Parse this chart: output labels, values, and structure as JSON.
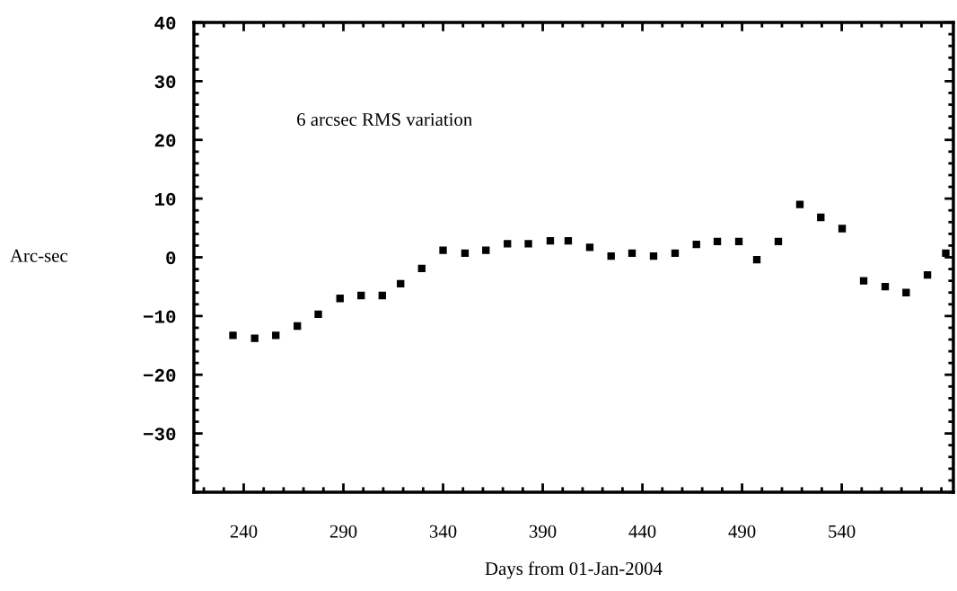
{
  "chart_data": {
    "type": "scatter",
    "xlabel": "Days from 01-Jan-2004",
    "ylabel": "Arc-sec",
    "annotations": [
      "6 arcsec RMS variation"
    ],
    "x": [
      234.6,
      245.5,
      256.1,
      266.9,
      277.4,
      288.3,
      298.9,
      309.5,
      318.7,
      329.3,
      340.0,
      351.0,
      361.5,
      372.3,
      382.8,
      393.8,
      402.8,
      413.6,
      424.3,
      434.8,
      445.6,
      456.4,
      467.1,
      477.6,
      488.4,
      497.4,
      508.2,
      519.0,
      529.5,
      540.2,
      551.0,
      561.8,
      572.3,
      583.0,
      592.2
    ],
    "series": [
      {
        "color": "#000000",
        "values": [
          -13.3,
          -13.8,
          -13.3,
          -11.7,
          -9.7,
          -7.0,
          -6.5,
          -6.5,
          -4.5,
          -1.9,
          1.2,
          0.7,
          1.2,
          2.3,
          2.3,
          2.8,
          2.8,
          1.7,
          0.2,
          0.7,
          0.2,
          0.7,
          2.2,
          2.7,
          2.7,
          -0.4,
          2.7,
          9.0,
          6.8,
          4.9,
          -4.0,
          -5.0,
          -6.0,
          -3.0,
          0.7
        ]
      }
    ],
    "xlim": [
      215,
      596
    ],
    "ylim": [
      -40,
      40
    ],
    "xticks": [
      240,
      290,
      340,
      390,
      440,
      490,
      540
    ],
    "yticks": [
      -30,
      -20,
      -10,
      0,
      10,
      20,
      30,
      40
    ],
    "marker": "square",
    "grid": false,
    "legend": false
  }
}
